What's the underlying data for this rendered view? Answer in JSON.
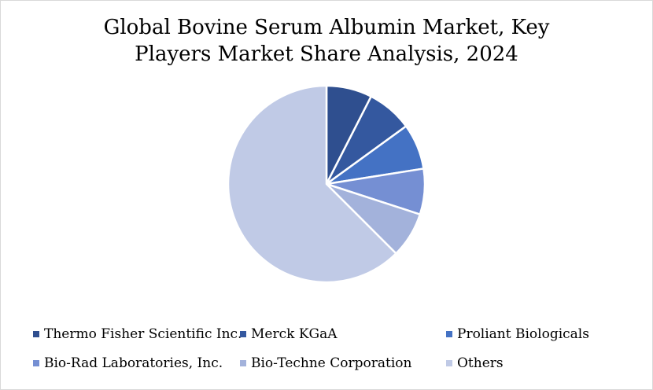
{
  "chart_data": {
    "type": "pie",
    "title_lines": [
      "Global Bovine Serum Albumin Market, Key",
      "Players Market Share Analysis, 2024"
    ],
    "slices": [
      {
        "label": "Thermo Fisher Scientific Inc.",
        "value": 7.5,
        "color": "#2f4f8f"
      },
      {
        "label": "Merck KGaA",
        "value": 7.5,
        "color": "#34589f"
      },
      {
        "label": "Proliant Biologicals",
        "value": 7.5,
        "color": "#4472c4"
      },
      {
        "label": "Bio-Rad Laboratories, Inc.",
        "value": 7.5,
        "color": "#758fd3"
      },
      {
        "label": "Bio-Techne Corporation",
        "value": 7.5,
        "color": "#a3b2db"
      },
      {
        "label": "Others",
        "value": 62.5,
        "color": "#c0cae6"
      }
    ],
    "legend_position": "bottom"
  }
}
